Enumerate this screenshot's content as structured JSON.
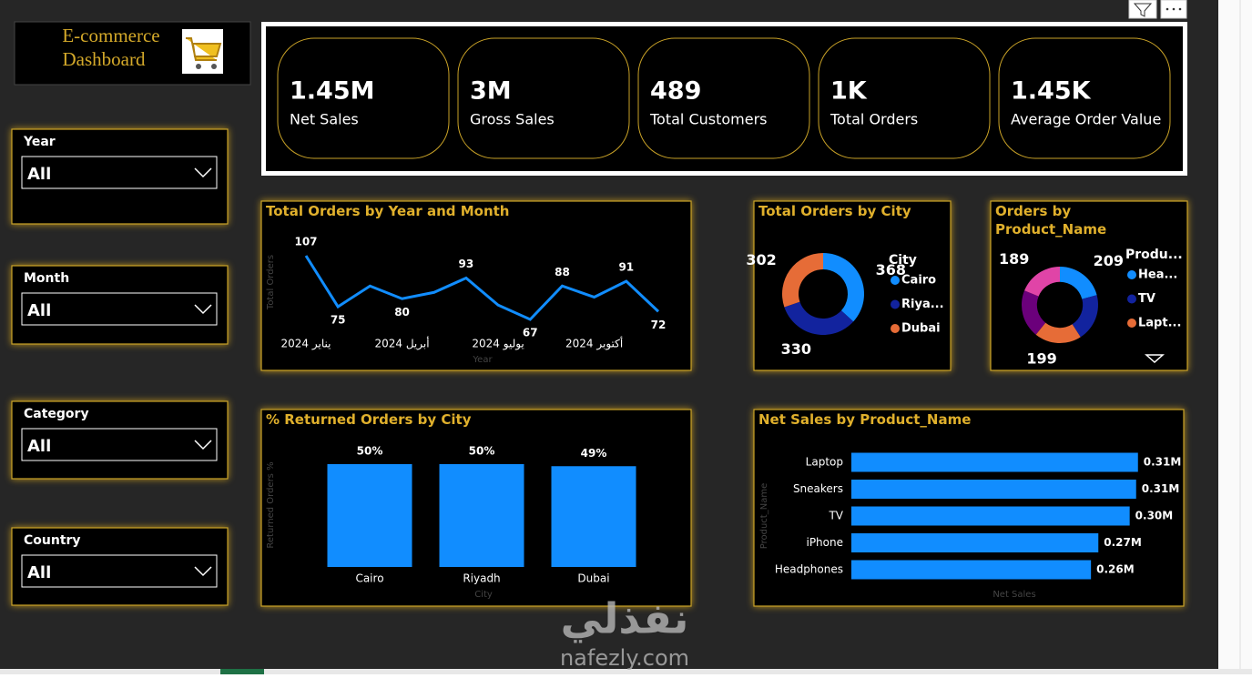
{
  "header": {
    "title_lines": [
      "E-commerce",
      "Dashboard"
    ]
  },
  "kpis": [
    {
      "value": "1.45M",
      "label": "Net Sales"
    },
    {
      "value": "3M",
      "label": "Gross Sales"
    },
    {
      "value": "489",
      "label": "Total Customers"
    },
    {
      "value": "1K",
      "label": "Total Orders"
    },
    {
      "value": "1.45K",
      "label": "Average Order Value"
    }
  ],
  "slicers": [
    {
      "label": "Year",
      "selection": "All"
    },
    {
      "label": "Month",
      "selection": "All"
    },
    {
      "label": "Category",
      "selection": "All"
    },
    {
      "label": "Country",
      "selection": "All"
    }
  ],
  "watermark": {
    "arabic": "نفذلي",
    "latin": "nafezly.com"
  },
  "chart_data": [
    {
      "type": "line",
      "title": "Total Orders by Year and Month",
      "x_label": "Year",
      "y_label": "Total Orders",
      "categories": [
        "يناير 2024",
        null,
        null,
        "أبريل 2024",
        null,
        null,
        "يوليو 2024",
        null,
        null,
        "أكتوبر 2024",
        null,
        null
      ],
      "values": [
        107,
        75,
        88,
        80,
        84,
        93,
        76,
        67,
        88,
        81,
        91,
        72
      ],
      "value_labels": [
        "107",
        "75",
        null,
        "80",
        null,
        "93",
        null,
        "67",
        "88",
        null,
        "91",
        "72"
      ],
      "color": "#118dff",
      "ylim": [
        60,
        110
      ]
    },
    {
      "type": "donut",
      "title": "Total Orders by City",
      "legend_title": "City",
      "categories": [
        "Cairo",
        "Riya...",
        "Dubai"
      ],
      "values": [
        368,
        330,
        302
      ],
      "colors": [
        "#118dff",
        "#12239e",
        "#e66c37"
      ]
    },
    {
      "type": "donut",
      "title": "Orders by Product_Name",
      "legend_title": "Produ...",
      "categories": [
        "Hea...",
        "TV",
        "Lapt...",
        null,
        null
      ],
      "values": [
        209,
        200,
        199,
        203,
        189
      ],
      "value_labels": [
        "209",
        null,
        "199",
        null,
        "189"
      ],
      "colors": [
        "#118dff",
        "#12239e",
        "#e66c37",
        "#6b007b",
        "#e044a7"
      ]
    },
    {
      "type": "bar",
      "title": "% Returned Orders by City",
      "x_label": "City",
      "y_label": "Returned Orders %",
      "categories": [
        "Cairo",
        "Riyadh",
        "Dubai"
      ],
      "values": [
        50,
        50,
        49
      ],
      "value_labels": [
        "50%",
        "50%",
        "49%"
      ],
      "color": "#118dff",
      "ylim": [
        0,
        55
      ]
    },
    {
      "type": "bar",
      "orientation": "horizontal",
      "title": "Net Sales by Product_Name",
      "x_label": "Net Sales",
      "y_label": "Product_Name",
      "categories": [
        "Laptop",
        "Sneakers",
        "TV",
        "iPhone",
        "Headphones"
      ],
      "values": [
        311000,
        309000,
        302000,
        268000,
        260000
      ],
      "value_labels": [
        "0.31M",
        "0.31M",
        "0.30M",
        "0.27M",
        "0.26M"
      ],
      "color": "#118dff",
      "xlim": [
        0,
        330000
      ]
    }
  ]
}
